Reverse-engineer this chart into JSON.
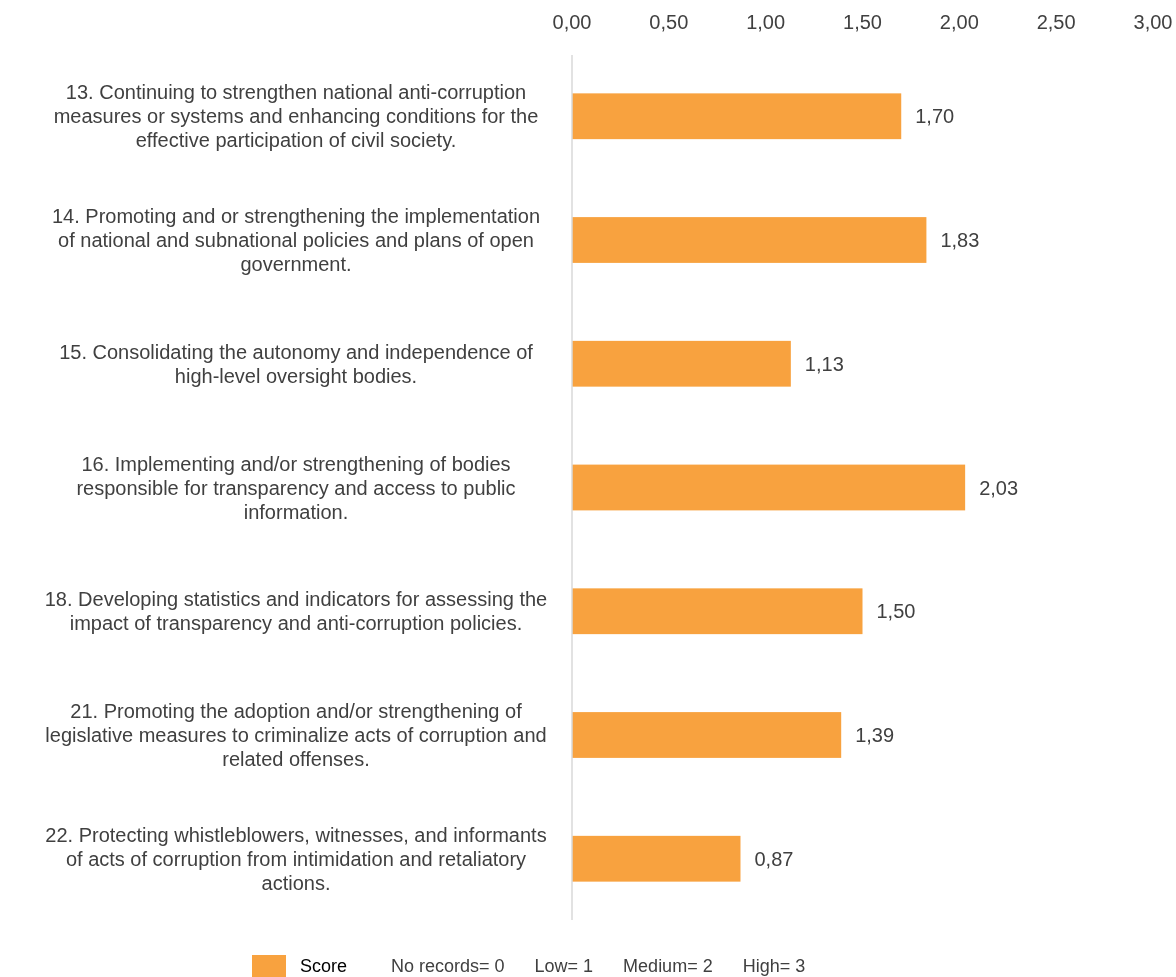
{
  "chart_data": {
    "type": "bar",
    "orientation": "horizontal",
    "categories": [
      "13. Continuing to strengthen national anti-corruption measures or systems and enhancing conditions for the effective participation of civil society.",
      "14. Promoting and or strengthening the implementation of national and subnational policies and plans of open government.",
      "15. Consolidating the autonomy and independence of high-level oversight bodies.",
      "16. Implementing and/or strengthening of bodies responsible for transparency and access to public information.",
      "18. Developing statistics and indicators for assessing the impact of transparency and anti-corruption policies.",
      "21. Promoting the adoption and/or strengthening of legislative measures to criminalize acts of corruption and related offenses.",
      "22. Protecting whistleblowers, witnesses, and informants of acts of corruption from intimidation and retaliatory actions."
    ],
    "series": [
      {
        "name": "Score",
        "color": "#f8a23f",
        "values": [
          1.7,
          1.83,
          1.13,
          2.03,
          1.5,
          1.39,
          0.87
        ],
        "value_labels": [
          "1,70",
          "1,83",
          "1,13",
          "2,03",
          "1,50",
          "1,39",
          "0,87"
        ]
      }
    ],
    "xlim": [
      0,
      3
    ],
    "xticks": [
      {
        "value": 0,
        "label": "0,00"
      },
      {
        "value": 0.5,
        "label": "0,50"
      },
      {
        "value": 1,
        "label": "1,00"
      },
      {
        "value": 1.5,
        "label": "1,50"
      },
      {
        "value": 2,
        "label": "2,00"
      },
      {
        "value": 2.5,
        "label": "2,50"
      },
      {
        "value": 3,
        "label": "3,00"
      }
    ],
    "grid": false,
    "legend": "bottom",
    "annotations": [
      "No records= 0",
      "Low= 1",
      "Medium= 2",
      "High= 3"
    ]
  }
}
